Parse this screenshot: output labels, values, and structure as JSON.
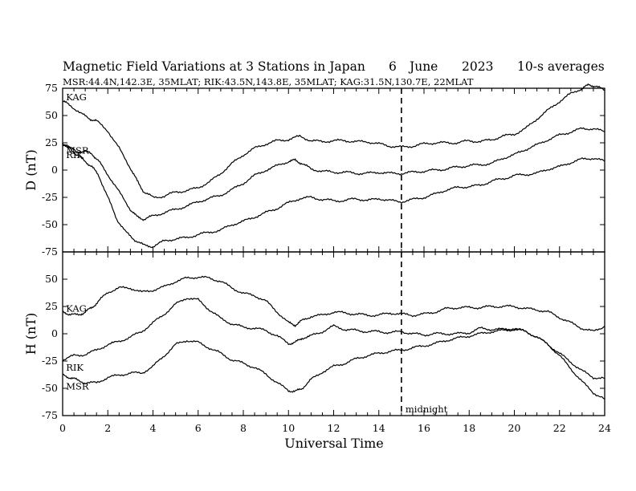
{
  "chart_data": {
    "type": "line",
    "title": "Magnetic Field Variations at 3 Stations in Japan",
    "date_day": "6",
    "date_month": "June",
    "date_year": "2023",
    "averaging": "10-s averages",
    "subtitle": "MSR:44.4N,142.3E, 35MLAT;  RIK:43.5N,143.8E, 35MLAT;  KAG:31.5N,130.7E, 22MLAT",
    "xlabel": "Universal Time",
    "xlim": [
      0,
      24
    ],
    "xticks": [
      "0",
      "2",
      "4",
      "6",
      "8",
      "10",
      "12",
      "14",
      "16",
      "18",
      "20",
      "22",
      "24"
    ],
    "annotation": {
      "text": "midnight",
      "x": 15
    },
    "panels": [
      {
        "ylabel": "D (nT)",
        "ylim": [
          -75,
          75
        ],
        "yticks": [
          "75",
          "50",
          "25",
          "0",
          "-25",
          "-50",
          "-75"
        ],
        "series": [
          {
            "name": "KAG",
            "x": [
              0,
              0.3,
              0.8,
              1.2,
              1.5,
              2.0,
              2.5,
              3.0,
              3.3,
              3.6,
              4.0,
              4.5,
              5.0,
              5.5,
              6.0,
              6.5,
              7.0,
              7.5,
              8.0,
              8.5,
              9.0,
              9.5,
              10.0,
              10.5,
              11.0,
              11.5,
              12.0,
              12.5,
              13.0,
              13.5,
              14.0,
              14.5,
              15.0,
              15.5,
              16.0,
              16.5,
              17.0,
              17.5,
              18.0,
              18.5,
              19.0,
              19.5,
              20.0,
              20.5,
              21.0,
              21.5,
              22.0,
              22.5,
              23.0,
              23.3,
              23.6,
              24.0
            ],
            "y": [
              63,
              60,
              52,
              47,
              45,
              36,
              20,
              2,
              -10,
              -20,
              -25,
              -24,
              -20,
              -19,
              -16,
              -11,
              -3,
              6,
              14,
              20,
              24,
              27,
              28,
              31,
              27,
              26,
              27,
              27,
              26,
              26,
              24,
              22,
              21,
              22,
              24,
              25,
              25,
              25,
              27,
              26,
              28,
              31,
              33,
              38,
              47,
              55,
              63,
              70,
              75,
              78,
              77,
              73
            ]
          },
          {
            "name": "MSR",
            "x": [
              0,
              0.3,
              0.6,
              1.0,
              1.3,
              1.6,
              2.0,
              2.5,
              3.0,
              3.3,
              3.6,
              4.0,
              4.5,
              5.0,
              5.5,
              6.0,
              6.5,
              7.0,
              7.5,
              8.0,
              8.5,
              9.0,
              9.5,
              10.0,
              10.3,
              10.6,
              11.0,
              11.5,
              12.0,
              12.5,
              13.0,
              13.5,
              14.0,
              14.5,
              15.0,
              15.5,
              16.0,
              16.5,
              17.0,
              17.5,
              18.0,
              18.5,
              19.0,
              19.5,
              20.0,
              20.5,
              21.0,
              21.5,
              22.0,
              22.5,
              23.0,
              23.5,
              24.0
            ],
            "y": [
              24,
              21,
              17,
              17,
              15,
              8,
              -4,
              -20,
              -36,
              -43,
              -45,
              -42,
              -39,
              -36,
              -33,
              -29,
              -26,
              -23,
              -18,
              -12,
              -5,
              0,
              4,
              8,
              9,
              6,
              1,
              -1,
              -2,
              -2,
              -3,
              -3,
              -2,
              -3,
              -3,
              -2,
              -1,
              0,
              1,
              3,
              4,
              5,
              6,
              11,
              14,
              19,
              23,
              28,
              32,
              35,
              38,
              38,
              35
            ]
          },
          {
            "name": "RIK",
            "x": [
              0,
              0.3,
              0.6,
              1.0,
              1.3,
              1.6,
              2.0,
              2.4,
              2.8,
              3.2,
              3.6,
              4.0,
              4.5,
              5.0,
              5.5,
              6.0,
              6.5,
              7.0,
              7.5,
              8.0,
              8.5,
              9.0,
              9.5,
              10.0,
              10.5,
              11.0,
              11.5,
              12.0,
              12.5,
              13.0,
              13.5,
              14.0,
              14.5,
              15.0,
              15.5,
              16.0,
              16.5,
              17.0,
              17.5,
              18.0,
              18.5,
              19.0,
              19.5,
              20.0,
              20.5,
              21.0,
              21.5,
              22.0,
              22.5,
              23.0,
              23.5,
              24.0
            ],
            "y": [
              23,
              21,
              14,
              8,
              3,
              -5,
              -25,
              -45,
              -57,
              -64,
              -69,
              -70,
              -65,
              -63,
              -62,
              -59,
              -57,
              -55,
              -50,
              -47,
              -43,
              -39,
              -35,
              -30,
              -26,
              -25,
              -27,
              -28,
              -28,
              -26,
              -28,
              -26,
              -28,
              -29,
              -27,
              -25,
              -22,
              -18,
              -16,
              -15,
              -14,
              -10,
              -8,
              -5,
              -4,
              -3,
              1,
              3,
              7,
              10,
              11,
              8
            ]
          }
        ],
        "labels": [
          {
            "text": "KAG",
            "x": 0.15,
            "y": 67
          },
          {
            "text": "MSR",
            "x": 0.15,
            "y": 18
          },
          {
            "text": "RIK",
            "x": 0.15,
            "y": 14
          }
        ]
      },
      {
        "ylabel": "H (nT)",
        "ylim": [
          -75,
          75
        ],
        "yticks": [
          "50",
          "25",
          "0",
          "-25",
          "-50",
          "-75"
        ],
        "series": [
          {
            "name": "KAG",
            "x": [
              0,
              0.3,
              0.7,
              1.0,
              1.3,
              1.6,
              2.0,
              2.5,
              3.0,
              3.5,
              4.0,
              4.5,
              5.0,
              5.5,
              6.0,
              6.5,
              7.0,
              7.5,
              8.0,
              8.5,
              9.0,
              9.5,
              10.0,
              10.3,
              10.6,
              11.0,
              11.5,
              12.0,
              12.5,
              13.0,
              13.5,
              14.0,
              14.5,
              15.0,
              15.5,
              16.0,
              16.5,
              17.0,
              17.5,
              18.0,
              18.5,
              19.0,
              19.5,
              20.0,
              20.5,
              21.0,
              21.5,
              22.0,
              22.5,
              23.0,
              23.5,
              24.0
            ],
            "y": [
              20,
              18,
              17,
              20,
              24,
              30,
              38,
              42,
              42,
              38,
              40,
              43,
              48,
              51,
              52,
              51,
              48,
              42,
              37,
              35,
              30,
              20,
              10,
              8,
              12,
              16,
              17,
              20,
              19,
              18,
              17,
              17,
              19,
              18,
              17,
              18,
              20,
              23,
              24,
              24,
              24,
              25,
              25,
              25,
              23,
              22,
              20,
              15,
              10,
              5,
              2,
              7
            ]
          },
          {
            "name": "RIK",
            "x": [
              0,
              0.5,
              1.0,
              1.5,
              2.0,
              2.5,
              3.0,
              3.5,
              4.0,
              4.5,
              5.0,
              5.5,
              6.0,
              6.5,
              7.0,
              7.5,
              8.0,
              8.5,
              9.0,
              9.5,
              10.0,
              10.3,
              10.6,
              11.0,
              11.5,
              12.0,
              12.5,
              13.0,
              13.5,
              14.0,
              14.5,
              15.0,
              15.5,
              16.0,
              16.5,
              17.0,
              17.5,
              18.0,
              18.5,
              19.0,
              19.5,
              20.0,
              20.5,
              21.0,
              21.5,
              22.0,
              22.5,
              23.0,
              23.5,
              24.0
            ],
            "y": [
              -24,
              -20,
              -19,
              -15,
              -10,
              -7,
              -3,
              2,
              10,
              18,
              27,
              33,
              31,
              22,
              14,
              9,
              6,
              5,
              3,
              -2,
              -9,
              -8,
              -4,
              -2,
              2,
              7,
              4,
              3,
              2,
              2,
              1,
              2,
              0,
              -1,
              0,
              0,
              0,
              1,
              5,
              4,
              4,
              5,
              2,
              -3,
              -10,
              -18,
              -26,
              -34,
              -40,
              -41
            ]
          },
          {
            "name": "MSR",
            "x": [
              0,
              0.3,
              0.6,
              1.0,
              1.5,
              2.0,
              2.5,
              3.0,
              3.5,
              4.0,
              4.5,
              5.0,
              5.5,
              6.0,
              6.5,
              7.0,
              7.5,
              8.0,
              8.5,
              9.0,
              9.5,
              10.0,
              10.3,
              10.6,
              11.0,
              11.5,
              12.0,
              12.5,
              13.0,
              13.5,
              14.0,
              14.5,
              15.0,
              15.5,
              16.0,
              16.5,
              17.0,
              17.5,
              18.0,
              18.5,
              19.0,
              19.5,
              20.0,
              20.5,
              21.0,
              21.5,
              22.0,
              22.5,
              23.0,
              23.5,
              24.0
            ],
            "y": [
              -38,
              -40,
              -42,
              -45,
              -45,
              -40,
              -38,
              -36,
              -36,
              -30,
              -20,
              -10,
              -6,
              -8,
              -13,
              -18,
              -24,
              -27,
              -31,
              -37,
              -45,
              -52,
              -53,
              -50,
              -42,
              -35,
              -30,
              -27,
              -23,
              -20,
              -18,
              -16,
              -15,
              -13,
              -11,
              -9,
              -6,
              -4,
              -2,
              0,
              2,
              3,
              4,
              2,
              -3,
              -10,
              -20,
              -32,
              -44,
              -54,
              -60
            ]
          }
        ],
        "labels": [
          {
            "text": "KAG",
            "x": 0.15,
            "y": 23
          },
          {
            "text": "RIK",
            "x": 0.15,
            "y": -31
          },
          {
            "text": "MSR",
            "x": 0.15,
            "y": -48
          }
        ]
      }
    ]
  }
}
